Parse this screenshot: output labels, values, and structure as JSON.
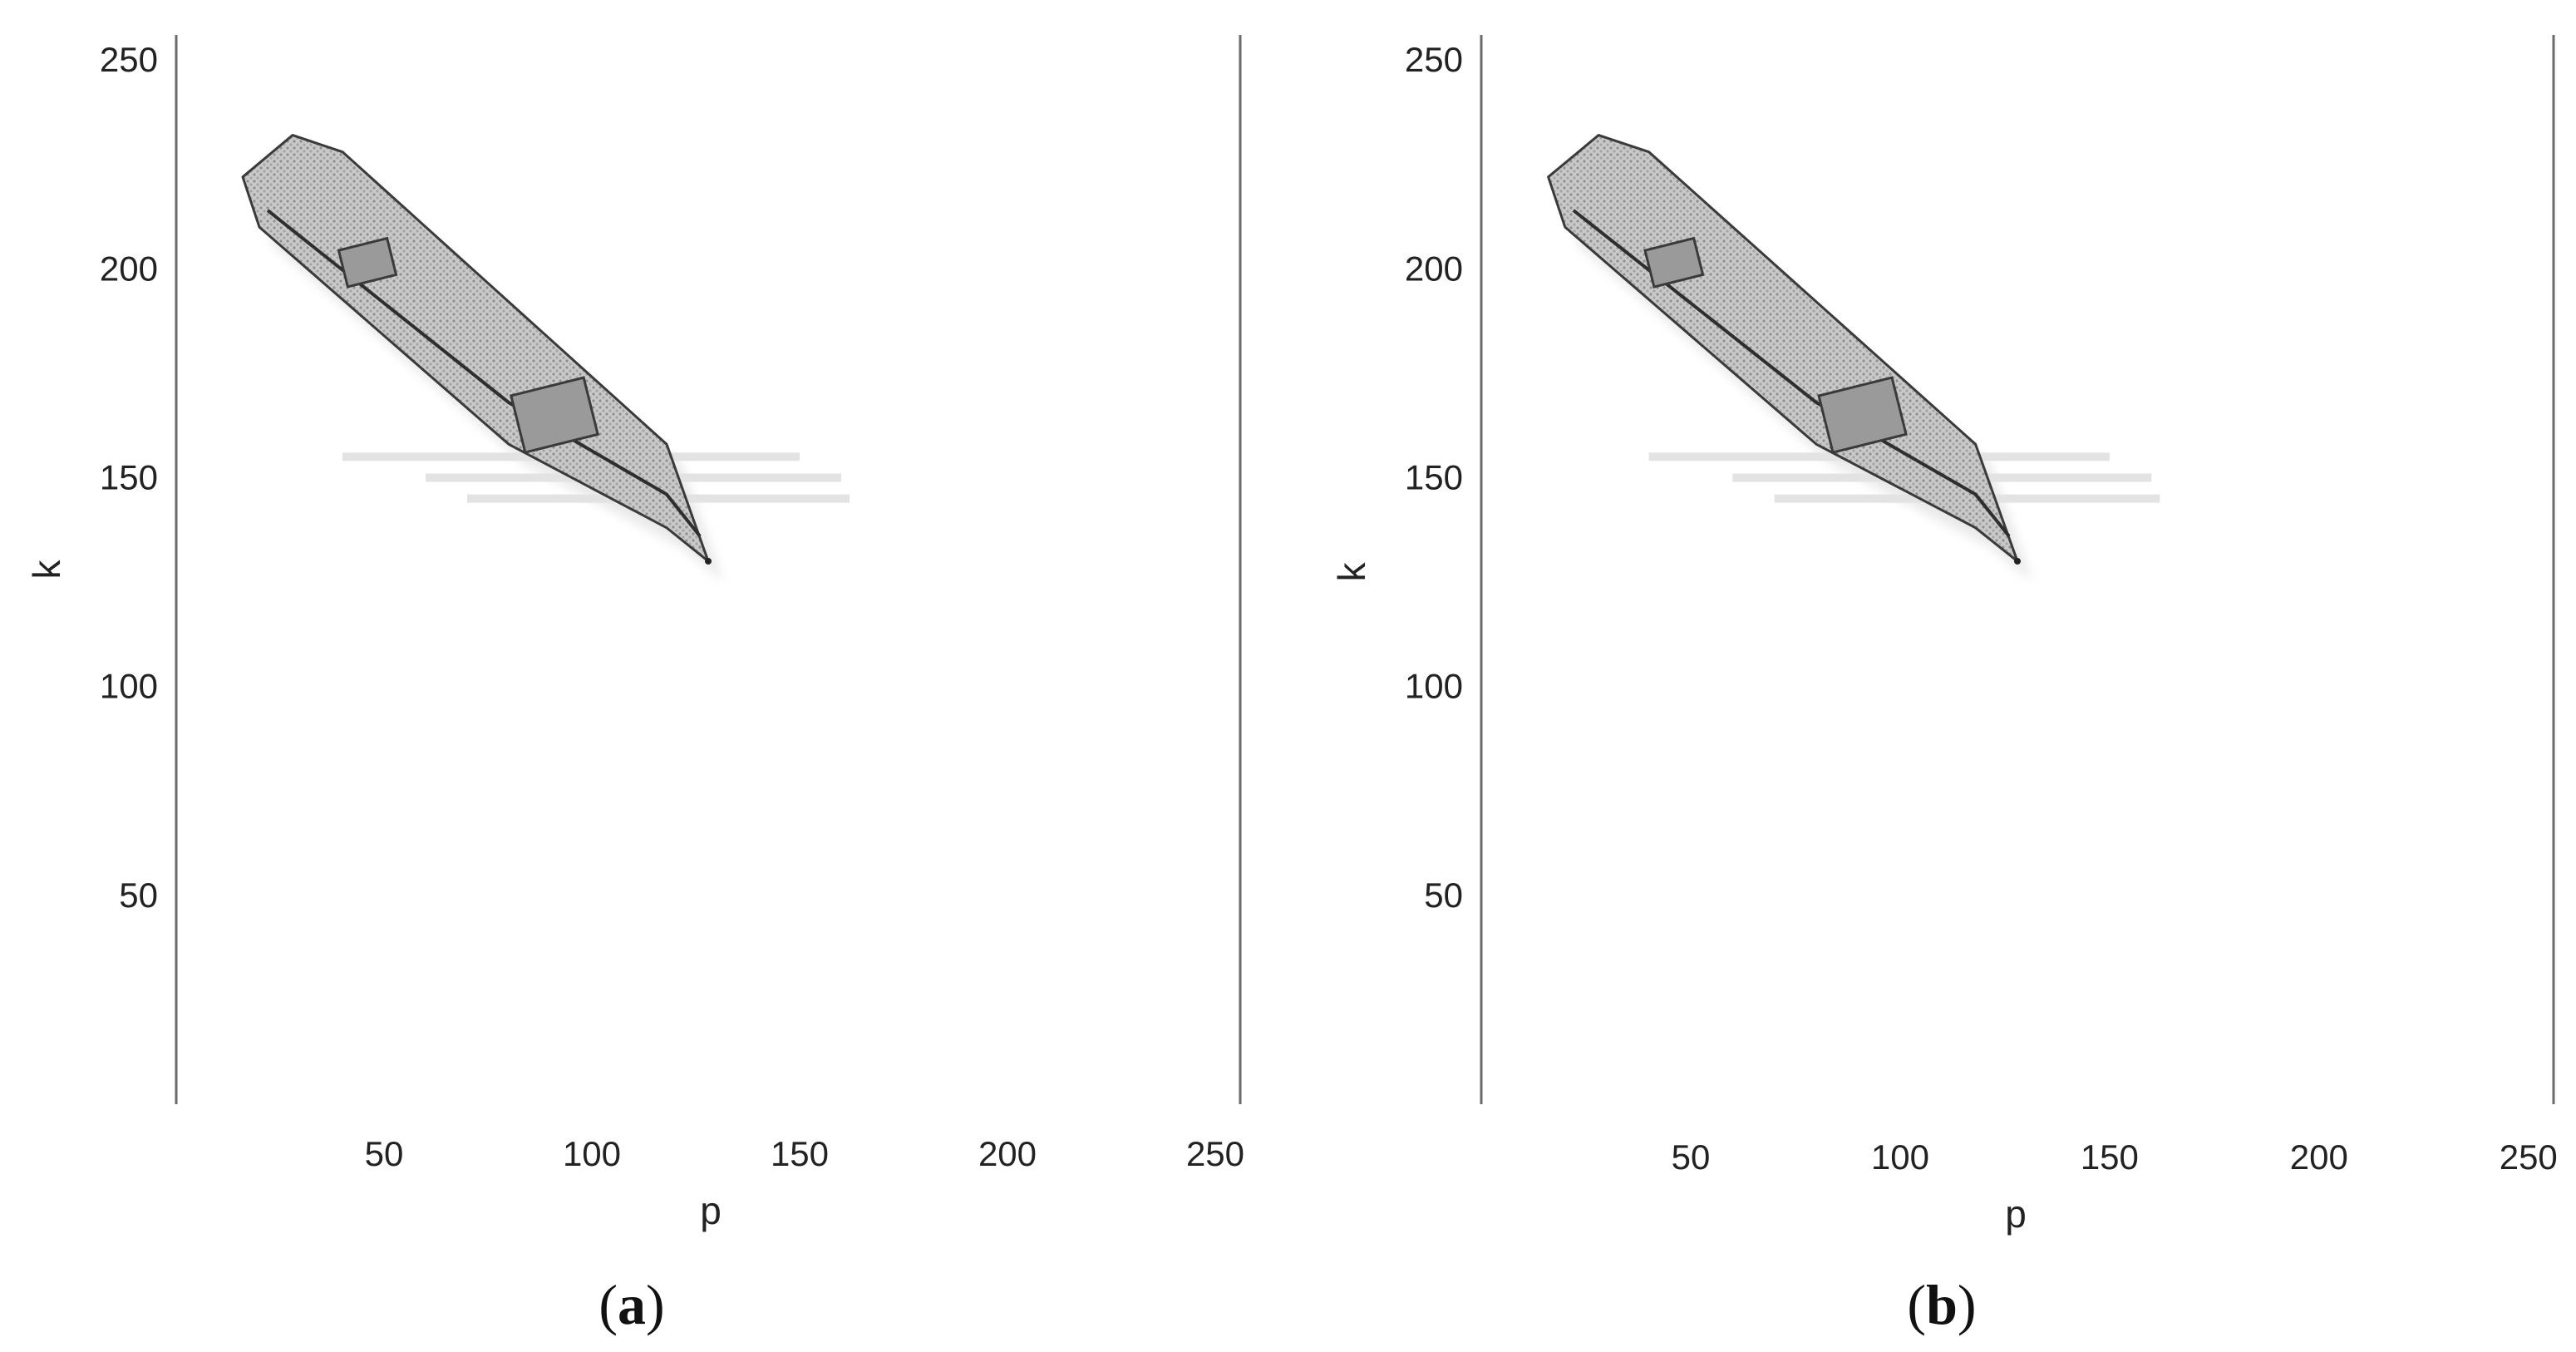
{
  "chart_data": [
    {
      "type": "heatmap",
      "panel_label": "a",
      "caption_open": "(",
      "caption_close": ")",
      "xlabel": "p",
      "ylabel": "k",
      "xlim": [
        0,
        256
      ],
      "ylim": [
        0,
        256
      ],
      "xticks": [
        50,
        100,
        150,
        200,
        250
      ],
      "yticks": [
        50,
        100,
        150,
        200,
        250
      ],
      "grid": false,
      "colormap": "grayscale",
      "description_values": {
        "shape_outline_pk": [
          [
            16,
            222
          ],
          [
            28,
            232
          ],
          [
            40,
            228
          ],
          [
            118,
            158
          ],
          [
            128,
            130
          ],
          [
            118,
            138
          ],
          [
            80,
            158
          ],
          [
            20,
            210
          ]
        ],
        "inner_rect_1_pk": [
          [
            40,
            197
          ],
          [
            52,
            206
          ]
        ],
        "inner_rect_2_pk": [
          [
            82,
            158
          ],
          [
            100,
            172
          ]
        ],
        "tip_pk": [
          128,
          130
        ]
      }
    },
    {
      "type": "heatmap",
      "panel_label": "b",
      "caption_open": "(",
      "caption_close": ")",
      "xlabel": "p",
      "ylabel": "k",
      "xlim": [
        0,
        256
      ],
      "ylim": [
        0,
        256
      ],
      "xticks": [
        50,
        100,
        150,
        200,
        250
      ],
      "yticks": [
        50,
        100,
        150,
        200,
        250
      ],
      "grid": false,
      "colormap": "grayscale",
      "description_values": {
        "shape_outline_pk": [
          [
            16,
            222
          ],
          [
            28,
            232
          ],
          [
            40,
            228
          ],
          [
            118,
            158
          ],
          [
            128,
            130
          ],
          [
            118,
            138
          ],
          [
            80,
            158
          ],
          [
            20,
            210
          ]
        ],
        "inner_rect_1_pk": [
          [
            40,
            197
          ],
          [
            52,
            206
          ]
        ],
        "inner_rect_2_pk": [
          [
            82,
            158
          ],
          [
            100,
            172
          ]
        ],
        "tip_pk": [
          128,
          130
        ]
      }
    }
  ],
  "colors": {
    "background": "#ffffff",
    "axis": "#6b6b6b",
    "shape_fill": "#bdbdbd",
    "shape_edge": "#3a3a3a",
    "speckle": "#d8d8d8"
  }
}
